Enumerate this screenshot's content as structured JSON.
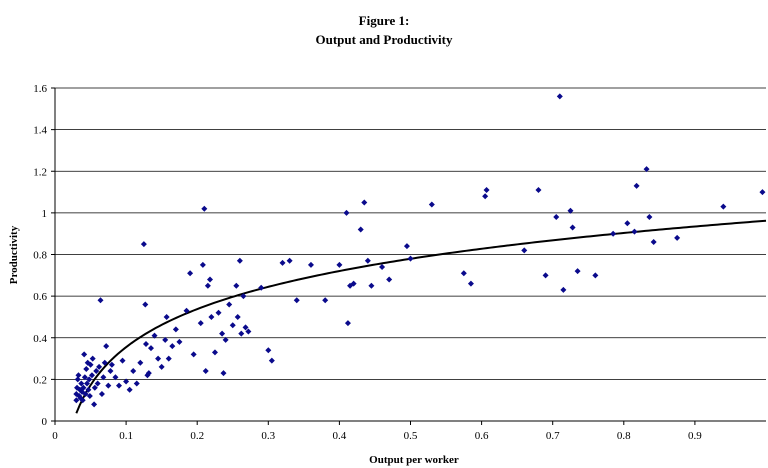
{
  "chart_data": {
    "type": "scatter",
    "title": "Figure 1:",
    "subtitle": "Output and Productivity",
    "xlabel": "Output per worker",
    "ylabel": "Productivity",
    "xlim": [
      0,
      1.0
    ],
    "ylim": [
      0,
      1.6
    ],
    "xticks": [
      "0",
      "0.1",
      "0.2",
      "0.3",
      "0.4",
      "0.5",
      "0.6",
      "0.7",
      "0.8",
      "0.9"
    ],
    "yticks": [
      "0",
      "0.2",
      "0.4",
      "0.6",
      "0.8",
      "1",
      "1.2",
      "1.4",
      "1.6"
    ],
    "grid": "horizontal",
    "marker_color": "#0a0a8c",
    "trend": {
      "type": "logarithmic",
      "a": 0.9623,
      "b": 0.2638
    },
    "points": [
      [
        0.03,
        0.1
      ],
      [
        0.03,
        0.13
      ],
      [
        0.031,
        0.16
      ],
      [
        0.032,
        0.2
      ],
      [
        0.033,
        0.22
      ],
      [
        0.034,
        0.12
      ],
      [
        0.035,
        0.15
      ],
      [
        0.036,
        0.11
      ],
      [
        0.037,
        0.18
      ],
      [
        0.038,
        0.14
      ],
      [
        0.039,
        0.1
      ],
      [
        0.04,
        0.16
      ],
      [
        0.041,
        0.32
      ],
      [
        0.042,
        0.21
      ],
      [
        0.043,
        0.13
      ],
      [
        0.044,
        0.25
      ],
      [
        0.045,
        0.18
      ],
      [
        0.046,
        0.28
      ],
      [
        0.047,
        0.15
      ],
      [
        0.048,
        0.2
      ],
      [
        0.049,
        0.12
      ],
      [
        0.05,
        0.27
      ],
      [
        0.052,
        0.22
      ],
      [
        0.053,
        0.3
      ],
      [
        0.055,
        0.08
      ],
      [
        0.056,
        0.16
      ],
      [
        0.058,
        0.24
      ],
      [
        0.06,
        0.18
      ],
      [
        0.062,
        0.26
      ],
      [
        0.064,
        0.58
      ],
      [
        0.066,
        0.13
      ],
      [
        0.068,
        0.21
      ],
      [
        0.07,
        0.28
      ],
      [
        0.072,
        0.36
      ],
      [
        0.075,
        0.17
      ],
      [
        0.078,
        0.24
      ],
      [
        0.08,
        0.27
      ],
      [
        0.085,
        0.21
      ],
      [
        0.09,
        0.17
      ],
      [
        0.095,
        0.29
      ],
      [
        0.1,
        0.19
      ],
      [
        0.105,
        0.15
      ],
      [
        0.11,
        0.24
      ],
      [
        0.115,
        0.18
      ],
      [
        0.12,
        0.28
      ],
      [
        0.125,
        0.85
      ],
      [
        0.127,
        0.56
      ],
      [
        0.128,
        0.37
      ],
      [
        0.13,
        0.22
      ],
      [
        0.132,
        0.23
      ],
      [
        0.135,
        0.35
      ],
      [
        0.14,
        0.41
      ],
      [
        0.145,
        0.3
      ],
      [
        0.15,
        0.26
      ],
      [
        0.155,
        0.39
      ],
      [
        0.157,
        0.5
      ],
      [
        0.16,
        0.3
      ],
      [
        0.165,
        0.36
      ],
      [
        0.17,
        0.44
      ],
      [
        0.175,
        0.38
      ],
      [
        0.185,
        0.53
      ],
      [
        0.19,
        0.71
      ],
      [
        0.195,
        0.32
      ],
      [
        0.205,
        0.47
      ],
      [
        0.208,
        0.75
      ],
      [
        0.21,
        1.02
      ],
      [
        0.212,
        0.24
      ],
      [
        0.215,
        0.65
      ],
      [
        0.218,
        0.68
      ],
      [
        0.22,
        0.5
      ],
      [
        0.225,
        0.33
      ],
      [
        0.23,
        0.52
      ],
      [
        0.235,
        0.42
      ],
      [
        0.237,
        0.23
      ],
      [
        0.24,
        0.39
      ],
      [
        0.245,
        0.56
      ],
      [
        0.25,
        0.46
      ],
      [
        0.255,
        0.65
      ],
      [
        0.257,
        0.5
      ],
      [
        0.26,
        0.77
      ],
      [
        0.262,
        0.42
      ],
      [
        0.265,
        0.6
      ],
      [
        0.268,
        0.45
      ],
      [
        0.272,
        0.43
      ],
      [
        0.29,
        0.64
      ],
      [
        0.3,
        0.34
      ],
      [
        0.305,
        0.29
      ],
      [
        0.32,
        0.76
      ],
      [
        0.33,
        0.77
      ],
      [
        0.34,
        0.58
      ],
      [
        0.36,
        0.75
      ],
      [
        0.38,
        0.58
      ],
      [
        0.4,
        0.75
      ],
      [
        0.41,
        1.0
      ],
      [
        0.412,
        0.47
      ],
      [
        0.415,
        0.65
      ],
      [
        0.42,
        0.66
      ],
      [
        0.43,
        0.92
      ],
      [
        0.435,
        1.05
      ],
      [
        0.44,
        0.77
      ],
      [
        0.445,
        0.65
      ],
      [
        0.46,
        0.74
      ],
      [
        0.47,
        0.68
      ],
      [
        0.495,
        0.84
      ],
      [
        0.5,
        0.78
      ],
      [
        0.53,
        1.04
      ],
      [
        0.575,
        0.71
      ],
      [
        0.585,
        0.66
      ],
      [
        0.605,
        1.08
      ],
      [
        0.607,
        1.11
      ],
      [
        0.66,
        0.82
      ],
      [
        0.68,
        1.11
      ],
      [
        0.69,
        0.7
      ],
      [
        0.705,
        0.98
      ],
      [
        0.71,
        1.56
      ],
      [
        0.715,
        0.63
      ],
      [
        0.725,
        1.01
      ],
      [
        0.728,
        0.93
      ],
      [
        0.735,
        0.72
      ],
      [
        0.76,
        0.7
      ],
      [
        0.785,
        0.9
      ],
      [
        0.805,
        0.95
      ],
      [
        0.815,
        0.91
      ],
      [
        0.818,
        1.13
      ],
      [
        0.832,
        1.21
      ],
      [
        0.836,
        0.98
      ],
      [
        0.842,
        0.86
      ],
      [
        0.875,
        0.88
      ],
      [
        0.94,
        1.03
      ],
      [
        0.995,
        1.1
      ]
    ]
  }
}
